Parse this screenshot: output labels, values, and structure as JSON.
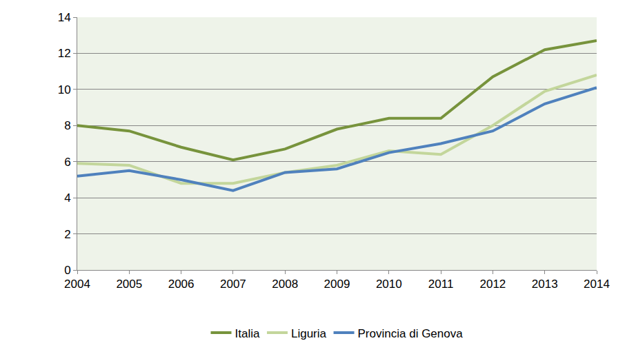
{
  "chart_data": {
    "type": "line",
    "x": [
      2004,
      2005,
      2006,
      2007,
      2008,
      2009,
      2010,
      2011,
      2012,
      2013,
      2014
    ],
    "series": [
      {
        "name": "Italia",
        "color": "#77933c",
        "values": [
          8.0,
          7.7,
          6.8,
          6.1,
          6.7,
          7.8,
          8.4,
          8.4,
          10.7,
          12.2,
          12.7
        ]
      },
      {
        "name": "Liguria",
        "color": "#c3d69b",
        "values": [
          5.9,
          5.8,
          4.8,
          4.8,
          5.4,
          5.8,
          6.6,
          6.4,
          8.0,
          9.9,
          10.8
        ]
      },
      {
        "name": "Provincia di Genova",
        "color": "#4f81bd",
        "values": [
          5.2,
          5.5,
          5.0,
          4.4,
          5.4,
          5.6,
          6.5,
          7.0,
          7.7,
          9.2,
          10.1
        ]
      }
    ],
    "xlim": [
      2004,
      2014
    ],
    "xticks": [
      2004,
      2005,
      2006,
      2007,
      2008,
      2009,
      2010,
      2011,
      2012,
      2013,
      2014
    ],
    "ylim": [
      0,
      14
    ],
    "yticks": [
      0,
      2,
      4,
      6,
      8,
      10,
      12,
      14
    ],
    "grid": true,
    "legend": "bottom"
  }
}
